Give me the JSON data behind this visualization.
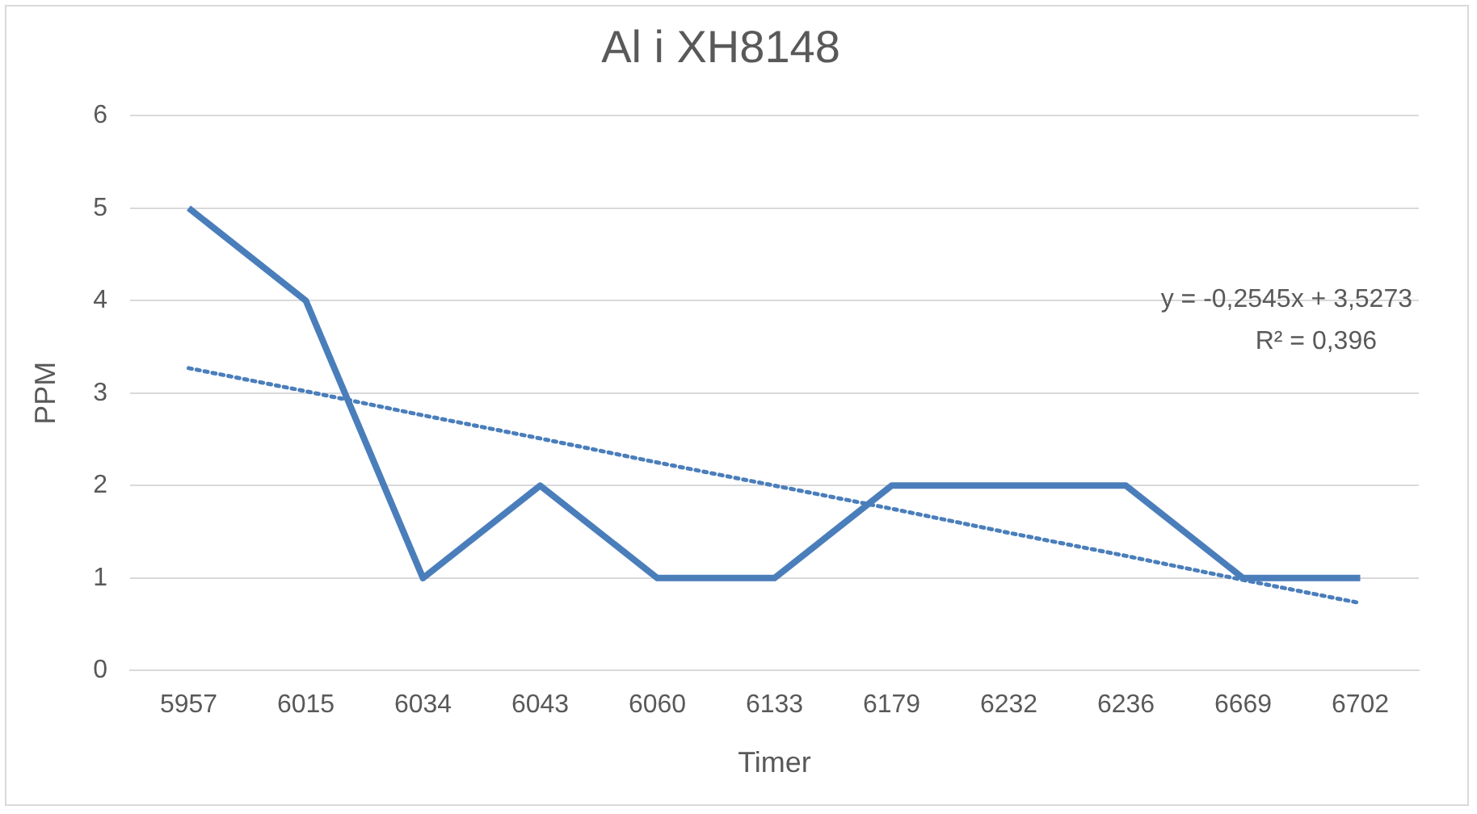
{
  "chart_data": {
    "type": "line",
    "title": "Al i XH8148",
    "xlabel": "Timer",
    "ylabel": "PPM",
    "categories": [
      "5957",
      "6015",
      "6034",
      "6043",
      "6060",
      "6133",
      "6179",
      "6232",
      "6236",
      "6669",
      "6702"
    ],
    "series": [
      {
        "color": "#4a7ebb",
        "values": [
          5,
          4,
          1,
          2,
          1,
          1,
          2,
          2,
          2,
          1,
          1
        ]
      },
      {
        "type": "line",
        "color": "#4a7ebb",
        "line_style": "dotted",
        "values": [
          3.27,
          3.02,
          2.76,
          2.51,
          2.25,
          2.0,
          1.75,
          1.49,
          1.24,
          0.98,
          0.73
        ]
      }
    ],
    "annotations": [
      "y = -0,2545x + 3,5273",
      "R² = 0,396"
    ],
    "ylim": [
      0,
      6
    ],
    "yticks": [
      0,
      1,
      2,
      3,
      4,
      5,
      6
    ],
    "grid": "y",
    "legend": false,
    "marker": "none",
    "line_style": "solid"
  }
}
